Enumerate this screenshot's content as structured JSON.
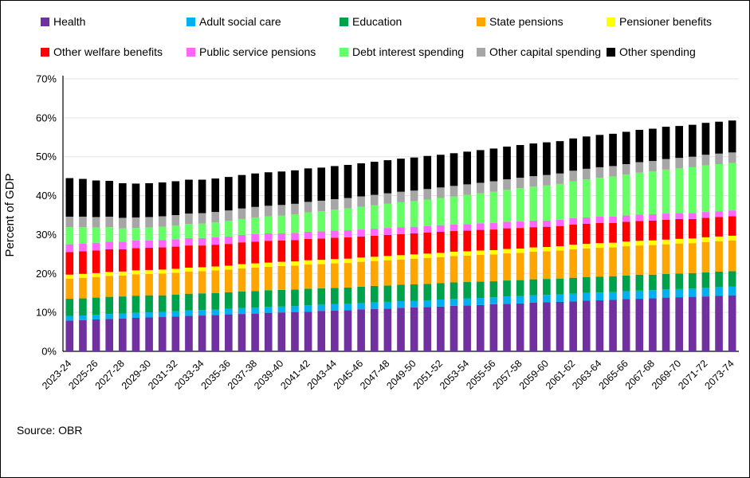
{
  "source_note": "Source: OBR",
  "chart_data": {
    "type": "bar",
    "stacked": true,
    "ylabel": "Percent of GDP",
    "ylim": [
      0,
      70
    ],
    "ytick_step": 10,
    "ytick_labels": [
      "0%",
      "10%",
      "20%",
      "30%",
      "40%",
      "50%",
      "60%",
      "70%"
    ],
    "xtick_shown_every": 2,
    "legend_position": "top",
    "grid": "faint horizontal",
    "categories": [
      "2023-24",
      "2024-25",
      "2025-26",
      "2026-27",
      "2027-28",
      "2028-29",
      "2029-30",
      "2030-31",
      "2031-32",
      "2032-33",
      "2033-34",
      "2034-35",
      "2035-36",
      "2036-37",
      "2037-38",
      "2038-39",
      "2039-40",
      "2040-41",
      "2041-42",
      "2042-43",
      "2043-44",
      "2044-45",
      "2045-46",
      "2046-47",
      "2047-48",
      "2048-49",
      "2049-50",
      "2050-51",
      "2051-52",
      "2052-53",
      "2053-54",
      "2054-55",
      "2055-56",
      "2056-57",
      "2057-58",
      "2058-59",
      "2059-60",
      "2060-61",
      "2061-62",
      "2062-63",
      "2063-64",
      "2064-65",
      "2065-66",
      "2066-67",
      "2067-68",
      "2068-69",
      "2069-70",
      "2070-71",
      "2071-72",
      "2072-73",
      "2073-74"
    ],
    "series": [
      {
        "name": "Health",
        "color": "#7030A0",
        "values": [
          7.9,
          8.0,
          8.2,
          8.3,
          8.4,
          8.6,
          8.7,
          8.8,
          8.9,
          9.1,
          9.2,
          9.3,
          9.5,
          9.6,
          9.7,
          9.9,
          10.0,
          10.1,
          10.2,
          10.4,
          10.5,
          10.6,
          10.8,
          10.9,
          11.0,
          11.2,
          11.3,
          11.4,
          11.5,
          11.7,
          11.8,
          11.9,
          12.1,
          12.2,
          12.3,
          12.5,
          12.6,
          12.7,
          12.8,
          13.0,
          13.1,
          13.2,
          13.4,
          13.5,
          13.6,
          13.8,
          13.9,
          14.0,
          14.1,
          14.3,
          14.4
        ]
      },
      {
        "name": "Adult social care",
        "color": "#00B0F0",
        "values": [
          1.2,
          1.2,
          1.2,
          1.3,
          1.3,
          1.3,
          1.3,
          1.3,
          1.4,
          1.4,
          1.4,
          1.4,
          1.4,
          1.5,
          1.5,
          1.5,
          1.5,
          1.5,
          1.6,
          1.6,
          1.6,
          1.6,
          1.6,
          1.7,
          1.7,
          1.7,
          1.7,
          1.7,
          1.8,
          1.8,
          1.8,
          1.8,
          1.8,
          1.9,
          1.9,
          1.9,
          1.9,
          1.9,
          2.0,
          2.0,
          2.0,
          2.0,
          2.0,
          2.1,
          2.1,
          2.1,
          2.1,
          2.1,
          2.2,
          2.2,
          2.2
        ]
      },
      {
        "name": "Education",
        "color": "#00A14B",
        "values": [
          4.4,
          4.4,
          4.4,
          4.4,
          4.4,
          4.4,
          4.4,
          4.3,
          4.3,
          4.3,
          4.3,
          4.3,
          4.3,
          4.3,
          4.3,
          4.3,
          4.3,
          4.3,
          4.3,
          4.2,
          4.2,
          4.2,
          4.2,
          4.2,
          4.2,
          4.2,
          4.2,
          4.2,
          4.2,
          4.2,
          4.2,
          4.2,
          4.1,
          4.1,
          4.1,
          4.1,
          4.1,
          4.1,
          4.1,
          4.1,
          4.1,
          4.1,
          4.1,
          4.1,
          4.0,
          4.0,
          4.0,
          4.0,
          4.0,
          4.0,
          4.0
        ]
      },
      {
        "name": "State pensions",
        "color": "#FFA500",
        "values": [
          5.2,
          5.3,
          5.3,
          5.4,
          5.4,
          5.5,
          5.5,
          5.6,
          5.6,
          5.7,
          5.7,
          5.8,
          5.8,
          5.9,
          6.0,
          6.0,
          6.1,
          6.1,
          6.2,
          6.2,
          6.3,
          6.3,
          6.4,
          6.4,
          6.5,
          6.5,
          6.6,
          6.7,
          6.7,
          6.8,
          6.8,
          6.9,
          6.9,
          7.0,
          7.0,
          7.1,
          7.1,
          7.2,
          7.3,
          7.3,
          7.4,
          7.4,
          7.5,
          7.5,
          7.6,
          7.6,
          7.7,
          7.7,
          7.8,
          7.8,
          7.9
        ]
      },
      {
        "name": "Pensioner benefits",
        "color": "#FFFF00",
        "values": [
          1.0,
          1.0,
          1.0,
          1.0,
          1.0,
          1.0,
          1.0,
          1.0,
          1.0,
          1.0,
          1.0,
          1.0,
          1.0,
          1.1,
          1.1,
          1.1,
          1.1,
          1.1,
          1.1,
          1.1,
          1.1,
          1.1,
          1.1,
          1.1,
          1.1,
          1.1,
          1.1,
          1.1,
          1.1,
          1.1,
          1.1,
          1.1,
          1.1,
          1.1,
          1.1,
          1.1,
          1.1,
          1.1,
          1.2,
          1.2,
          1.2,
          1.2,
          1.2,
          1.2,
          1.2,
          1.2,
          1.2,
          1.2,
          1.2,
          1.2,
          1.2
        ]
      },
      {
        "name": "Other welfare benefits",
        "color": "#FF0000",
        "values": [
          5.8,
          5.8,
          5.8,
          5.8,
          5.7,
          5.7,
          5.7,
          5.7,
          5.7,
          5.7,
          5.6,
          5.6,
          5.6,
          5.6,
          5.6,
          5.6,
          5.5,
          5.5,
          5.5,
          5.5,
          5.5,
          5.5,
          5.4,
          5.4,
          5.4,
          5.4,
          5.4,
          5.4,
          5.4,
          5.3,
          5.3,
          5.3,
          5.3,
          5.3,
          5.3,
          5.2,
          5.2,
          5.2,
          5.2,
          5.2,
          5.2,
          5.1,
          5.1,
          5.1,
          5.1,
          5.1,
          5.1,
          5.0,
          5.0,
          5.0,
          5.0
        ]
      },
      {
        "name": "Public service pensions",
        "color": "#FF66FF",
        "values": [
          2.0,
          2.0,
          2.0,
          2.0,
          2.0,
          2.0,
          1.9,
          1.9,
          1.9,
          1.9,
          1.9,
          1.9,
          1.9,
          1.9,
          1.9,
          1.9,
          1.8,
          1.8,
          1.8,
          1.8,
          1.8,
          1.8,
          1.8,
          1.8,
          1.8,
          1.8,
          1.7,
          1.7,
          1.7,
          1.7,
          1.7,
          1.7,
          1.7,
          1.7,
          1.7,
          1.7,
          1.6,
          1.6,
          1.6,
          1.6,
          1.6,
          1.6,
          1.6,
          1.6,
          1.6,
          1.6,
          1.5,
          1.5,
          1.5,
          1.5,
          1.5
        ]
      },
      {
        "name": "Debt interest spending",
        "color": "#66FF66",
        "values": [
          4.4,
          4.2,
          3.9,
          3.7,
          3.4,
          3.2,
          3.3,
          3.4,
          3.5,
          3.6,
          3.7,
          3.8,
          4.0,
          4.1,
          4.3,
          4.4,
          4.6,
          4.8,
          5.0,
          5.2,
          5.4,
          5.6,
          5.8,
          6.0,
          6.2,
          6.4,
          6.6,
          6.8,
          7.0,
          7.2,
          7.5,
          7.7,
          8.0,
          8.2,
          8.5,
          8.7,
          9.0,
          9.2,
          9.5,
          9.8,
          10.0,
          10.3,
          10.5,
          10.8,
          11.0,
          11.3,
          11.5,
          11.8,
          12.0,
          12.1,
          12.2
        ]
      },
      {
        "name": "Other capital spending",
        "color": "#A6A6A6",
        "values": [
          2.7,
          2.7,
          2.7,
          2.7,
          2.7,
          2.7,
          2.7,
          2.7,
          2.7,
          2.7,
          2.7,
          2.7,
          2.7,
          2.7,
          2.7,
          2.7,
          2.7,
          2.7,
          2.7,
          2.7,
          2.7,
          2.7,
          2.7,
          2.7,
          2.7,
          2.7,
          2.7,
          2.7,
          2.7,
          2.7,
          2.7,
          2.7,
          2.7,
          2.7,
          2.7,
          2.7,
          2.7,
          2.7,
          2.7,
          2.7,
          2.7,
          2.7,
          2.7,
          2.7,
          2.7,
          2.7,
          2.7,
          2.7,
          2.7,
          2.7,
          2.7
        ]
      },
      {
        "name": "Other spending",
        "color": "#000000",
        "values": [
          9.9,
          9.7,
          9.4,
          9.2,
          8.9,
          8.7,
          8.7,
          8.7,
          8.7,
          8.7,
          8.6,
          8.6,
          8.6,
          8.6,
          8.6,
          8.6,
          8.6,
          8.6,
          8.6,
          8.5,
          8.5,
          8.5,
          8.5,
          8.5,
          8.5,
          8.5,
          8.5,
          8.5,
          8.4,
          8.4,
          8.4,
          8.4,
          8.4,
          8.4,
          8.4,
          8.4,
          8.4,
          8.3,
          8.3,
          8.3,
          8.3,
          8.3,
          8.3,
          8.3,
          8.3,
          8.3,
          8.2,
          8.2,
          8.2,
          8.2,
          8.2
        ]
      }
    ]
  }
}
